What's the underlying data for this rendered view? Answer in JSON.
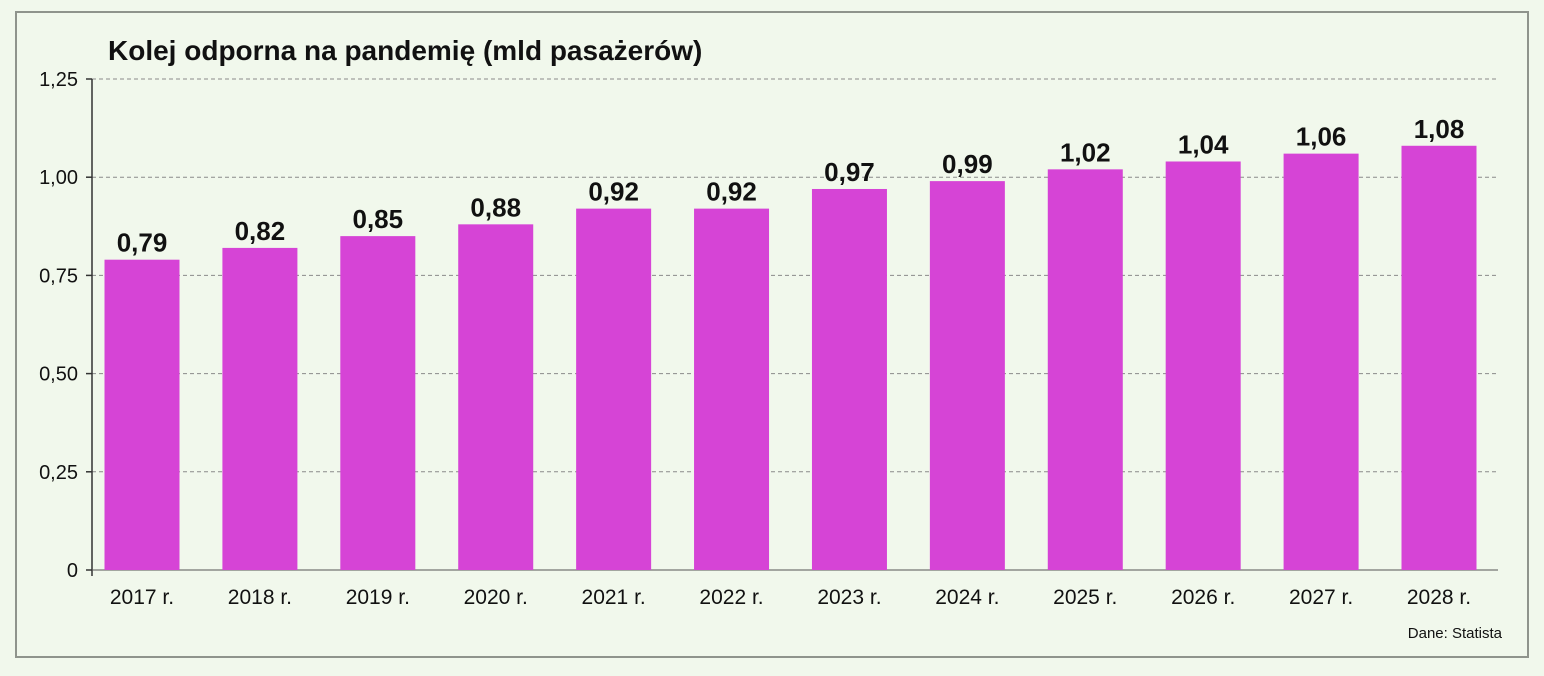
{
  "colors": {
    "background": "#f1f8ec",
    "bar": "#d644d6",
    "grid": "#8a8a8a",
    "text": "#111111",
    "frame_border": "#8f948c"
  },
  "source_note": "Dane: Statista",
  "chart_data": {
    "type": "bar",
    "title": "Kolej odporna na pandemię (mld pasażerów)",
    "xlabel": "",
    "ylabel": "",
    "categories": [
      "2017 r.",
      "2018 r.",
      "2019 r.",
      "2020 r.",
      "2021 r.",
      "2022 r.",
      "2023 r.",
      "2024 r.",
      "2025 r.",
      "2026 r.",
      "2027 r.",
      "2028 r."
    ],
    "values": [
      0.79,
      0.82,
      0.85,
      0.88,
      0.92,
      0.92,
      0.97,
      0.99,
      1.02,
      1.04,
      1.06,
      1.08
    ],
    "value_labels": [
      "0,79",
      "0,82",
      "0,85",
      "0,88",
      "0,92",
      "0,92",
      "0,97",
      "0,99",
      "1,02",
      "1,04",
      "1,06",
      "1,08"
    ],
    "ylim": [
      0,
      1.25
    ],
    "yticks": [
      0,
      0.25,
      0.5,
      0.75,
      1.0,
      1.25
    ],
    "ytick_labels": [
      "0",
      "0,25",
      "0,50",
      "0,75",
      "1,00",
      "1,25"
    ],
    "grid": true,
    "grid_style": "dashed",
    "legend": "none"
  }
}
